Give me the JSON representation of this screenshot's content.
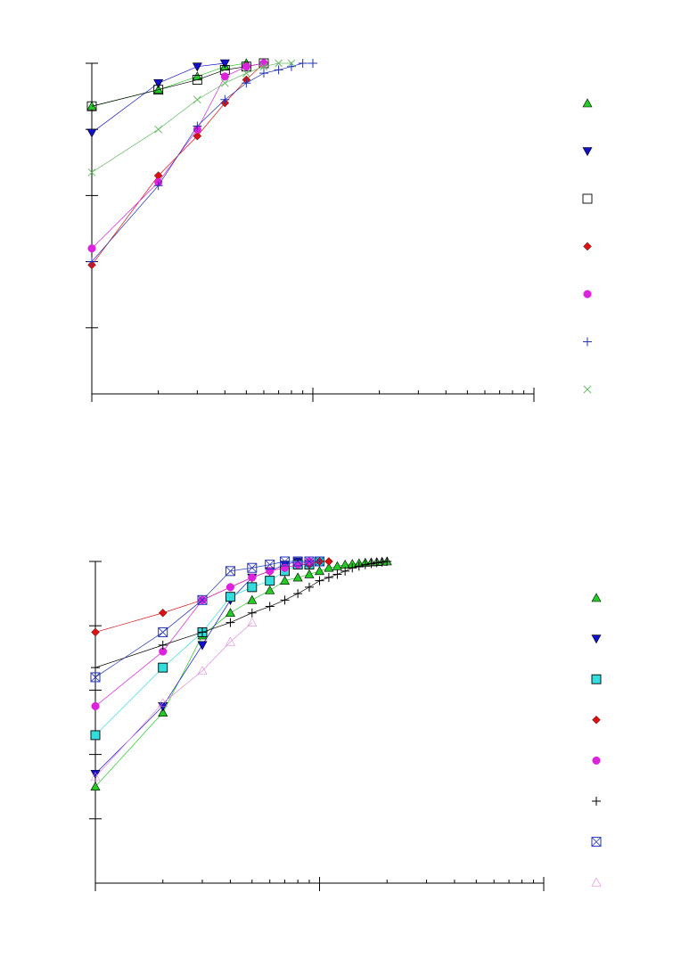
{
  "chart_data": [
    {
      "type": "scatter",
      "xscale": "log",
      "xlim": [
        1,
        100
      ],
      "ylim": [
        0,
        1
      ],
      "title": "",
      "xlabel": "",
      "ylabel": "",
      "legend": "right",
      "series": [
        {
          "color": "#22cc22",
          "marker": "triangle-up-filled",
          "x": [
            1,
            2,
            3,
            4,
            5
          ],
          "y": [
            0.87,
            0.92,
            0.96,
            0.99,
            1.0
          ]
        },
        {
          "color": "#1111cc",
          "marker": "triangle-down-filled",
          "x": [
            1,
            2,
            3,
            4
          ],
          "y": [
            0.79,
            0.94,
            0.99,
            1.0
          ]
        },
        {
          "color": "#000000",
          "marker": "square-open",
          "x": [
            1,
            2,
            3,
            4,
            5,
            6
          ],
          "y": [
            0.87,
            0.92,
            0.95,
            0.98,
            0.99,
            1.0
          ]
        },
        {
          "color": "#dd1111",
          "marker": "diamond-filled",
          "x": [
            1,
            2,
            3,
            4,
            5,
            6
          ],
          "y": [
            0.39,
            0.66,
            0.78,
            0.88,
            0.95,
            1.0
          ]
        },
        {
          "color": "#dd22dd",
          "marker": "circle-filled",
          "x": [
            1,
            2,
            3,
            4,
            5,
            6
          ],
          "y": [
            0.44,
            0.64,
            0.8,
            0.96,
            0.99,
            1.0
          ]
        },
        {
          "color": "#2233bb",
          "marker": "plus",
          "x": [
            1,
            2,
            3,
            4,
            5,
            6,
            7,
            8,
            9,
            10
          ],
          "y": [
            0.4,
            0.63,
            0.81,
            0.89,
            0.94,
            0.97,
            0.98,
            0.99,
            1.0,
            1.0
          ]
        },
        {
          "color": "#66bb66",
          "marker": "cross",
          "x": [
            1,
            2,
            3,
            4,
            5,
            6,
            7,
            8
          ],
          "y": [
            0.67,
            0.8,
            0.89,
            0.94,
            0.97,
            0.99,
            1.0,
            1.0
          ]
        }
      ]
    },
    {
      "type": "scatter",
      "xscale": "log",
      "xlim": [
        1,
        100
      ],
      "ylim": [
        0,
        1
      ],
      "title": "",
      "xlabel": "",
      "ylabel": "",
      "legend": "right",
      "series": [
        {
          "color": "#22cc22",
          "marker": "triangle-up-filled",
          "x": [
            1,
            2,
            3,
            4,
            5,
            6,
            7,
            8,
            9,
            10,
            11,
            12,
            13,
            14,
            15,
            16,
            17,
            18,
            19,
            20
          ],
          "y": [
            0.3,
            0.53,
            0.77,
            0.84,
            0.88,
            0.91,
            0.94,
            0.95,
            0.96,
            0.97,
            0.98,
            0.985,
            0.99,
            0.992,
            0.994,
            0.996,
            0.997,
            0.998,
            0.999,
            1.0
          ]
        },
        {
          "color": "#1111cc",
          "marker": "triangle-down-filled",
          "x": [
            1,
            2,
            3,
            4,
            5,
            6,
            7,
            8
          ],
          "y": [
            0.34,
            0.55,
            0.74,
            0.88,
            0.95,
            0.97,
            0.99,
            1.0
          ]
        },
        {
          "color": "#33dddd",
          "marker": "square-filled",
          "x": [
            1,
            2,
            3,
            4,
            5,
            6,
            7,
            8,
            9,
            10
          ],
          "y": [
            0.46,
            0.67,
            0.78,
            0.89,
            0.92,
            0.94,
            0.97,
            0.99,
            0.99,
            1.0
          ]
        },
        {
          "color": "#dd1111",
          "marker": "diamond-filled",
          "x": [
            1,
            2,
            3,
            4,
            5,
            6,
            7,
            8,
            9,
            10,
            11
          ],
          "y": [
            0.78,
            0.84,
            0.88,
            0.92,
            0.95,
            0.97,
            0.98,
            0.99,
            0.99,
            1.0,
            1.0
          ]
        },
        {
          "color": "#dd22dd",
          "marker": "circle-filled",
          "x": [
            1,
            2,
            3,
            4,
            5,
            6,
            7,
            8,
            9
          ],
          "y": [
            0.55,
            0.72,
            0.88,
            0.92,
            0.95,
            0.97,
            0.98,
            0.99,
            1.0
          ]
        },
        {
          "color": "#000000",
          "marker": "plus",
          "x": [
            1,
            2,
            3,
            4,
            5,
            6,
            7,
            8,
            9,
            10,
            11,
            12,
            13,
            14,
            15,
            16,
            17,
            18,
            19,
            20
          ],
          "y": [
            0.67,
            0.74,
            0.78,
            0.81,
            0.84,
            0.86,
            0.88,
            0.9,
            0.92,
            0.94,
            0.95,
            0.96,
            0.97,
            0.98,
            0.985,
            0.99,
            0.993,
            0.996,
            0.998,
            1.0
          ]
        },
        {
          "color": "#2233bb",
          "marker": "square-crossed",
          "x": [
            1,
            2,
            3,
            4,
            5,
            6,
            7,
            8,
            9,
            10
          ],
          "y": [
            0.64,
            0.78,
            0.88,
            0.97,
            0.98,
            0.99,
            1.0,
            1.0,
            1.0,
            1.0
          ]
        },
        {
          "color": "#dd88dd",
          "marker": "triangle-up-open",
          "x": [
            1,
            2,
            3,
            4,
            5
          ],
          "y": [
            0.33,
            0.56,
            0.66,
            0.75,
            0.81
          ]
        }
      ]
    }
  ]
}
